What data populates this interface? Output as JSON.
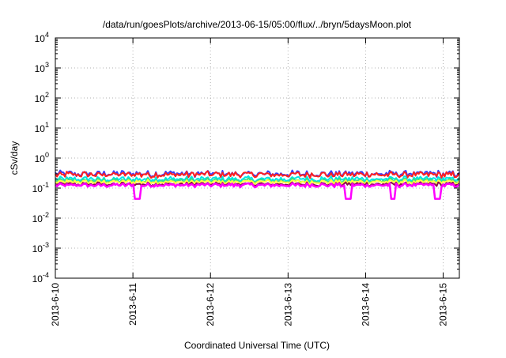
{
  "chart_data": {
    "type": "line",
    "title": "/data/run/goesPlots/archive/2013-06-15/05:00/flux/../bryn/5daysMoon.plot",
    "xlabel": "Coordinated Universal Time (UTC)",
    "ylabel": "cSv/day",
    "y_scale": "log",
    "ylim": [
      0.0001,
      10000
    ],
    "y_ticks": [
      {
        "value": 0.0001,
        "base": "10",
        "exp": "-4"
      },
      {
        "value": 0.001,
        "base": "10",
        "exp": "-3"
      },
      {
        "value": 0.01,
        "base": "10",
        "exp": "-2"
      },
      {
        "value": 0.1,
        "base": "10",
        "exp": "-1"
      },
      {
        "value": 1,
        "base": "10",
        "exp": "0"
      },
      {
        "value": 10,
        "base": "10",
        "exp": "1"
      },
      {
        "value": 100,
        "base": "10",
        "exp": "2"
      },
      {
        "value": 1000,
        "base": "10",
        "exp": "3"
      },
      {
        "value": 10000,
        "base": "10",
        "exp": "4"
      }
    ],
    "xlim": [
      "2013-06-10",
      "2013-06-15 05:00"
    ],
    "x_tick_labels": [
      "2013-6-10",
      "2013-6-11",
      "2013-6-12",
      "2013-6-13",
      "2013-6-14",
      "2013-6-15"
    ],
    "grid": true,
    "legend": "none",
    "series": [
      {
        "color": "#3a3aff",
        "base": 0.3,
        "amp": 0.33,
        "dips": []
      },
      {
        "color": "#ff2020",
        "base": 0.28,
        "amp": 0.33,
        "dips": []
      },
      {
        "color": "#00e5e5",
        "base": 0.2,
        "amp": 0.28,
        "dips": []
      },
      {
        "color": "#3ddc84",
        "base": 0.175,
        "amp": 0.25,
        "dips": []
      },
      {
        "color": "#ffff40",
        "base": 0.16,
        "amp": 0.22,
        "dips": []
      },
      {
        "color": "#8b0a4a",
        "base": 0.135,
        "amp": 0.2,
        "dips": []
      },
      {
        "color": "#ff00ff",
        "base": 0.125,
        "amp": 0.2,
        "dips": [
          1.05,
          3.78,
          4.35,
          4.92
        ]
      }
    ]
  }
}
